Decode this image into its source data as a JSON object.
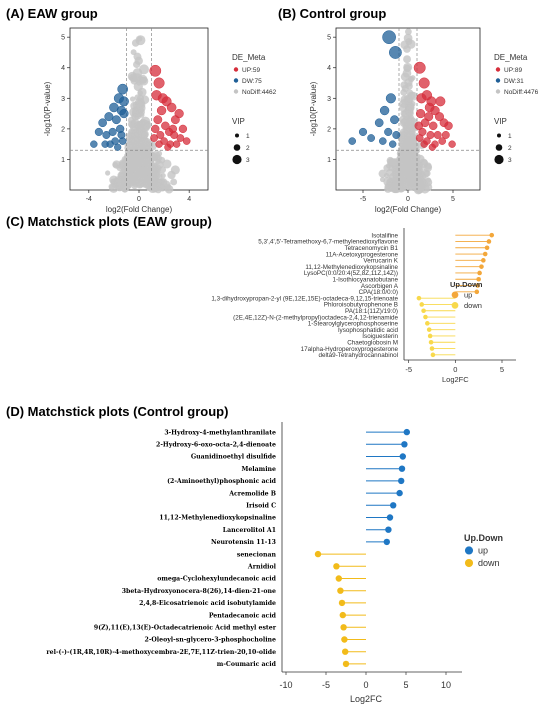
{
  "panel_labels": {
    "A": "(A)  EAW group",
    "B": "(B)  Control group",
    "C": "(C)  Matchstick plots  (EAW group)",
    "D": "(D)  Matchstick plots  (Control group)"
  },
  "colors": {
    "up": "#d62e3b",
    "down": "#1f5f97",
    "nodiff": "#c4c4c4",
    "lolli_up": "#f3a73a",
    "lolli_down": "#f8d94c",
    "lolli_up_D": "#1f77c4",
    "lolli_down_D": "#f2bb1a"
  },
  "chart_data": [
    {
      "type": "scatter",
      "id": "volcano-eaw",
      "xlabel": "log2(Fold Change)",
      "ylabel": "-log10(P-value)",
      "xlim": [
        -5.5,
        5.5
      ],
      "ylim": [
        0,
        5.3
      ],
      "xticks": [
        "-4",
        "0",
        "4"
      ],
      "xtick_values": [
        -4,
        0,
        4
      ],
      "yticks": [
        "1",
        "2",
        "3",
        "4",
        "5"
      ],
      "ytick_values": [
        1,
        2,
        3,
        4,
        5
      ],
      "threshold_x": [
        -1,
        1
      ],
      "threshold_y": 1.3,
      "legend": {
        "title": "DE_Meta",
        "entries": [
          {
            "label": "UP:59",
            "color": "#d62e3b"
          },
          {
            "label": "DW:75",
            "color": "#1f5f97"
          },
          {
            "label": "NoDiff:4462",
            "color": "#c4c4c4"
          }
        ],
        "vip_title": "VIP",
        "vip_entries": [
          "1",
          "2",
          "3"
        ]
      },
      "series": [
        {
          "name": "UP:59",
          "points": [
            [
              1.3,
              3.9
            ],
            [
              1.6,
              3.5
            ],
            [
              1.9,
              3.0
            ],
            [
              2.2,
              2.9
            ],
            [
              1.4,
              3.1
            ],
            [
              1.8,
              2.6
            ],
            [
              2.6,
              2.7
            ],
            [
              2.9,
              2.3
            ],
            [
              1.5,
              2.3
            ],
            [
              2.1,
              2.1
            ],
            [
              3.2,
              2.5
            ],
            [
              2.4,
              1.9
            ],
            [
              1.7,
              1.8
            ],
            [
              2.8,
              1.8
            ],
            [
              3.5,
              2.0
            ],
            [
              1.3,
              2.0
            ],
            [
              2.0,
              1.6
            ],
            [
              3.0,
              1.5
            ],
            [
              2.5,
              1.5
            ],
            [
              3.8,
              1.6
            ],
            [
              1.6,
              1.5
            ],
            [
              2.3,
              1.4
            ],
            [
              1.2,
              1.7
            ],
            [
              3.3,
              1.7
            ],
            [
              2.7,
              2.0
            ]
          ]
        },
        {
          "name": "DW:75",
          "points": [
            [
              -1.3,
              3.3
            ],
            [
              -1.6,
              3.0
            ],
            [
              -2.0,
              2.7
            ],
            [
              -1.4,
              2.6
            ],
            [
              -2.4,
              2.4
            ],
            [
              -1.8,
              2.3
            ],
            [
              -2.9,
              2.2
            ],
            [
              -1.2,
              2.5
            ],
            [
              -1.5,
              2.0
            ],
            [
              -2.1,
              1.9
            ],
            [
              -2.6,
              1.8
            ],
            [
              -1.9,
              1.6
            ],
            [
              -1.3,
              1.6
            ],
            [
              -3.2,
              1.9
            ],
            [
              -2.3,
              1.5
            ],
            [
              -1.7,
              1.4
            ],
            [
              -3.6,
              1.5
            ],
            [
              -1.2,
              2.9
            ],
            [
              -2.7,
              1.5
            ],
            [
              -1.4,
              1.8
            ]
          ]
        },
        {
          "name": "NoDiff:4462",
          "points": []
        }
      ]
    },
    {
      "type": "scatter",
      "id": "volcano-control",
      "xlabel": "log2(Fold Change)",
      "ylabel": "-log10(P-value)",
      "xlim": [
        -8,
        8
      ],
      "ylim": [
        0,
        5.3
      ],
      "xticks": [
        "-5",
        "0",
        "5"
      ],
      "xtick_values": [
        -5,
        0,
        5
      ],
      "yticks": [
        "1",
        "2",
        "3",
        "4",
        "5"
      ],
      "ytick_values": [
        1,
        2,
        3,
        4,
        5
      ],
      "threshold_x": [
        -1,
        1
      ],
      "threshold_y": 1.3,
      "legend": {
        "title": "DE_Meta",
        "entries": [
          {
            "label": "UP:89",
            "color": "#d62e3b"
          },
          {
            "label": "DW:31",
            "color": "#1f5f97"
          },
          {
            "label": "NoDiff:4476",
            "color": "#c4c4c4"
          }
        ],
        "vip_title": "VIP",
        "vip_entries": [
          "1",
          "2",
          "3"
        ]
      },
      "series": [
        {
          "name": "UP:89",
          "points": [
            [
              1.3,
              4.0
            ],
            [
              1.8,
              3.5
            ],
            [
              2.1,
              3.1
            ],
            [
              1.5,
              3.0
            ],
            [
              2.6,
              2.9
            ],
            [
              3.0,
              2.6
            ],
            [
              1.4,
              2.5
            ],
            [
              2.3,
              2.4
            ],
            [
              3.5,
              2.4
            ],
            [
              1.9,
              2.2
            ],
            [
              2.8,
              2.1
            ],
            [
              4.0,
              2.2
            ],
            [
              1.6,
              1.9
            ],
            [
              2.5,
              1.8
            ],
            [
              3.3,
              1.8
            ],
            [
              4.5,
              2.1
            ],
            [
              1.3,
              1.7
            ],
            [
              2.1,
              1.6
            ],
            [
              3.8,
              1.6
            ],
            [
              3.0,
              1.5
            ],
            [
              1.8,
              1.5
            ],
            [
              2.7,
              1.4
            ],
            [
              4.9,
              1.5
            ],
            [
              1.2,
              2.1
            ],
            [
              3.6,
              2.9
            ],
            [
              2.4,
              2.7
            ],
            [
              4.2,
              1.8
            ]
          ]
        },
        {
          "name": "DW:31",
          "points": [
            [
              -2.1,
              5.0
            ],
            [
              -1.4,
              4.5
            ],
            [
              -1.9,
              3.0
            ],
            [
              -2.6,
              2.6
            ],
            [
              -1.5,
              2.3
            ],
            [
              -3.2,
              2.2
            ],
            [
              -2.2,
              1.9
            ],
            [
              -1.3,
              1.8
            ],
            [
              -4.1,
              1.7
            ],
            [
              -2.8,
              1.6
            ],
            [
              -5.0,
              1.9
            ],
            [
              -1.7,
              1.5
            ],
            [
              -6.2,
              1.6
            ]
          ]
        },
        {
          "name": "NoDiff:4476",
          "points": []
        }
      ]
    },
    {
      "type": "bar",
      "subtype": "lollipop",
      "id": "matchstick-eaw",
      "title": "Matchstick plots  (EAW group)",
      "xlabel": "Log2FC",
      "xlim": [
        -5.5,
        6.5
      ],
      "xticks": [
        "-5",
        "0",
        "5"
      ],
      "xtick_values": [
        -5,
        0,
        5
      ],
      "legend": {
        "title": "Up.Down",
        "entries": [
          {
            "label": "up",
            "color": "#f3a73a"
          },
          {
            "label": "down",
            "color": "#f8d94c"
          }
        ]
      },
      "categories": [
        "Isotalifine",
        "5,3',4',5'-Tetramethoxy-6,7-methylenedioxyflavone",
        "Tetracenomycin B1",
        "11A-Acetoxyprogesterone",
        "Verrucarin K",
        "11,12-Methylenedioxykopsinaline",
        "LysoPC(0:0/20:4(5Z,8Z,11Z,14Z))",
        "1-Isothiocyanatobutane",
        "Ascorbigen A",
        "CPA(18:0/0:0)",
        "1,3-dihydroxypropan-2-yl (9E,12E,15E)-octadeca-9,12,15-trienoate",
        "Phloroisobutyrophenone B",
        "PA(18:1(11Z)/19:0)",
        "(2E,4E,12Z)-N-(2-methylpropyl)octadeca-2,4,12-trienamide",
        "1-Stearoylglycerophosphoserine",
        "lysophosphatidic acid",
        "Isoiguesterin",
        "Chaetoglobosin M",
        "17alpha-Hydroperoxyprogesterone",
        "delta9-Tetrahydrocannabinol"
      ],
      "values": [
        3.9,
        3.6,
        3.4,
        3.2,
        3.0,
        2.8,
        2.6,
        2.5,
        2.4,
        2.3,
        -3.9,
        -3.6,
        -3.4,
        -3.2,
        -3.0,
        -2.8,
        -2.7,
        -2.6,
        -2.5,
        -2.4
      ],
      "groups": [
        "up",
        "up",
        "up",
        "up",
        "up",
        "up",
        "up",
        "up",
        "up",
        "up",
        "down",
        "down",
        "down",
        "down",
        "down",
        "down",
        "down",
        "down",
        "down",
        "down"
      ]
    },
    {
      "type": "bar",
      "subtype": "lollipop",
      "id": "matchstick-control",
      "title": "Matchstick plots  (Control group)",
      "xlabel": "Log2FC",
      "xlim": [
        -10.5,
        12
      ],
      "xticks": [
        "-10",
        "-5",
        "0",
        "5",
        "10"
      ],
      "xtick_values": [
        -10,
        -5,
        0,
        5,
        10
      ],
      "legend": {
        "title": "Up.Down",
        "entries": [
          {
            "label": "up",
            "color": "#1f77c4"
          },
          {
            "label": "down",
            "color": "#f2bb1a"
          }
        ]
      },
      "categories": [
        "3-Hydroxy-4-methylanthranilate",
        "2-Hydroxy-6-oxo-octa-2,4-dienoate",
        "Guanidinoethyl disulfide",
        "Melamine",
        "(2-Aminoethyl)phosphonic acid",
        "Acremolide B",
        "Irisoid C",
        "11,12-Methylenedioxykopsinaline",
        "Lancerolitol A1",
        "Neurotensin 11-13",
        "senecionan",
        "Arnidiol",
        "omega-Cyclohexylundecanoic acid",
        "3beta-Hydroxyonocera-8(26),14-dien-21-one",
        "2,4,8-Eicosatrienoic acid isobutylamide",
        "Pentadecanoic acid",
        "9(Z),11(E),13(E)-Octadecatrienoic Acid methyl ester",
        "2-Oleoyl-sn-glycero-3-phosphocholine",
        "rel-(-)-(1R,4R,10R)-4-methoxycembra-2E,7E,11Z-trien-20,10-olide",
        "m-Coumaric acid"
      ],
      "values": [
        5.1,
        4.8,
        4.6,
        4.5,
        4.4,
        4.2,
        3.4,
        3.0,
        2.8,
        2.6,
        -6.0,
        -3.7,
        -3.4,
        -3.2,
        -3.0,
        -2.9,
        -2.8,
        -2.7,
        -2.6,
        -2.5
      ],
      "groups": [
        "up",
        "up",
        "up",
        "up",
        "up",
        "up",
        "up",
        "up",
        "up",
        "up",
        "down",
        "down",
        "down",
        "down",
        "down",
        "down",
        "down",
        "down",
        "down",
        "down"
      ]
    }
  ]
}
